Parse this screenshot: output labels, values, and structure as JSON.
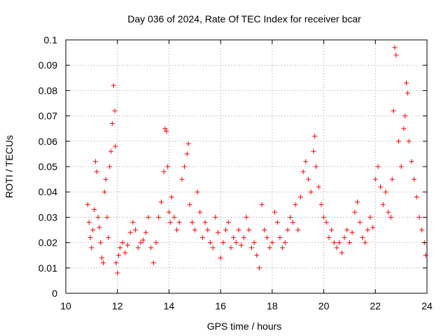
{
  "chart_data": {
    "type": "scatter",
    "title": "Day 036 of 2024, Rate Of TEC Index for receiver bcar",
    "xlabel": "GPS time / hours",
    "ylabel": "ROTI / TECUs",
    "xlim": [
      10,
      24
    ],
    "ylim": [
      0,
      0.1
    ],
    "x_ticks": [
      10,
      12,
      14,
      16,
      18,
      20,
      22,
      24
    ],
    "x_tick_labels": [
      "10",
      "12",
      "14",
      "16",
      "18",
      "20",
      "22",
      "24"
    ],
    "y_ticks": [
      0,
      0.01,
      0.02,
      0.03,
      0.04,
      0.05,
      0.06,
      0.07,
      0.08,
      0.09,
      0.1
    ],
    "y_tick_labels": [
      "0",
      "0.01",
      "0.02",
      "0.03",
      "0.04",
      "0.05",
      "0.06",
      "0.07",
      "0.08",
      "0.09",
      "0.1"
    ],
    "grid": true,
    "marker": "+",
    "color": "#ff0000",
    "series": [
      {
        "name": "ROTI",
        "x": [
          10.85,
          10.9,
          10.95,
          11.0,
          11.05,
          11.1,
          11.15,
          11.2,
          11.25,
          11.3,
          11.35,
          11.4,
          11.45,
          11.5,
          11.55,
          11.6,
          11.65,
          11.7,
          11.75,
          11.8,
          11.85,
          11.9,
          11.92,
          11.95,
          12.0,
          12.05,
          12.1,
          12.2,
          12.3,
          12.4,
          12.5,
          12.6,
          12.7,
          12.8,
          12.9,
          13.0,
          13.1,
          13.2,
          13.3,
          13.4,
          13.5,
          13.6,
          13.7,
          13.8,
          13.85,
          13.9,
          13.95,
          14.0,
          14.05,
          14.1,
          14.2,
          14.3,
          14.4,
          14.5,
          14.6,
          14.7,
          14.75,
          14.8,
          14.9,
          15.0,
          15.1,
          15.2,
          15.3,
          15.4,
          15.5,
          15.6,
          15.7,
          15.8,
          15.9,
          16.0,
          16.1,
          16.2,
          16.3,
          16.4,
          16.5,
          16.6,
          16.7,
          16.8,
          16.9,
          17.0,
          17.1,
          17.2,
          17.3,
          17.4,
          17.5,
          17.6,
          17.7,
          17.8,
          17.9,
          18.0,
          18.1,
          18.2,
          18.3,
          18.4,
          18.5,
          18.6,
          18.7,
          18.8,
          18.9,
          19.0,
          19.1,
          19.2,
          19.3,
          19.4,
          19.5,
          19.6,
          19.65,
          19.7,
          19.8,
          19.9,
          20.0,
          20.1,
          20.2,
          20.3,
          20.4,
          20.5,
          20.6,
          20.7,
          20.8,
          20.9,
          21.0,
          21.1,
          21.2,
          21.3,
          21.4,
          21.5,
          21.6,
          21.7,
          21.8,
          21.9,
          22.0,
          22.1,
          22.2,
          22.3,
          22.4,
          22.5,
          22.6,
          22.65,
          22.7,
          22.75,
          22.8,
          22.9,
          23.0,
          23.1,
          23.15,
          23.2,
          23.25,
          23.3,
          23.4,
          23.5,
          23.6,
          23.7,
          23.8,
          23.9,
          23.95
        ],
        "values": [
          0.035,
          0.028,
          0.022,
          0.018,
          0.025,
          0.033,
          0.052,
          0.048,
          0.03,
          0.026,
          0.02,
          0.014,
          0.012,
          0.04,
          0.045,
          0.03,
          0.022,
          0.05,
          0.056,
          0.067,
          0.082,
          0.072,
          0.058,
          0.012,
          0.008,
          0.015,
          0.018,
          0.02,
          0.016,
          0.019,
          0.024,
          0.028,
          0.025,
          0.018,
          0.02,
          0.021,
          0.024,
          0.03,
          0.018,
          0.012,
          0.02,
          0.03,
          0.036,
          0.048,
          0.065,
          0.064,
          0.05,
          0.032,
          0.028,
          0.038,
          0.03,
          0.025,
          0.028,
          0.045,
          0.05,
          0.055,
          0.059,
          0.035,
          0.028,
          0.025,
          0.04,
          0.032,
          0.022,
          0.028,
          0.025,
          0.02,
          0.018,
          0.03,
          0.024,
          0.014,
          0.02,
          0.025,
          0.028,
          0.018,
          0.022,
          0.02,
          0.025,
          0.019,
          0.022,
          0.03,
          0.025,
          0.018,
          0.02,
          0.015,
          0.01,
          0.035,
          0.025,
          0.022,
          0.018,
          0.02,
          0.032,
          0.028,
          0.022,
          0.018,
          0.02,
          0.025,
          0.03,
          0.028,
          0.035,
          0.025,
          0.038,
          0.048,
          0.052,
          0.045,
          0.04,
          0.056,
          0.062,
          0.05,
          0.042,
          0.035,
          0.03,
          0.028,
          0.022,
          0.025,
          0.02,
          0.018,
          0.02,
          0.016,
          0.022,
          0.025,
          0.02,
          0.024,
          0.032,
          0.036,
          0.028,
          0.022,
          0.02,
          0.025,
          0.03,
          0.026,
          0.045,
          0.05,
          0.042,
          0.035,
          0.04,
          0.032,
          0.03,
          0.045,
          0.072,
          0.097,
          0.094,
          0.06,
          0.05,
          0.065,
          0.07,
          0.083,
          0.079,
          0.06,
          0.052,
          0.045,
          0.038,
          0.03,
          0.025,
          0.02,
          0.015
        ]
      }
    ]
  }
}
